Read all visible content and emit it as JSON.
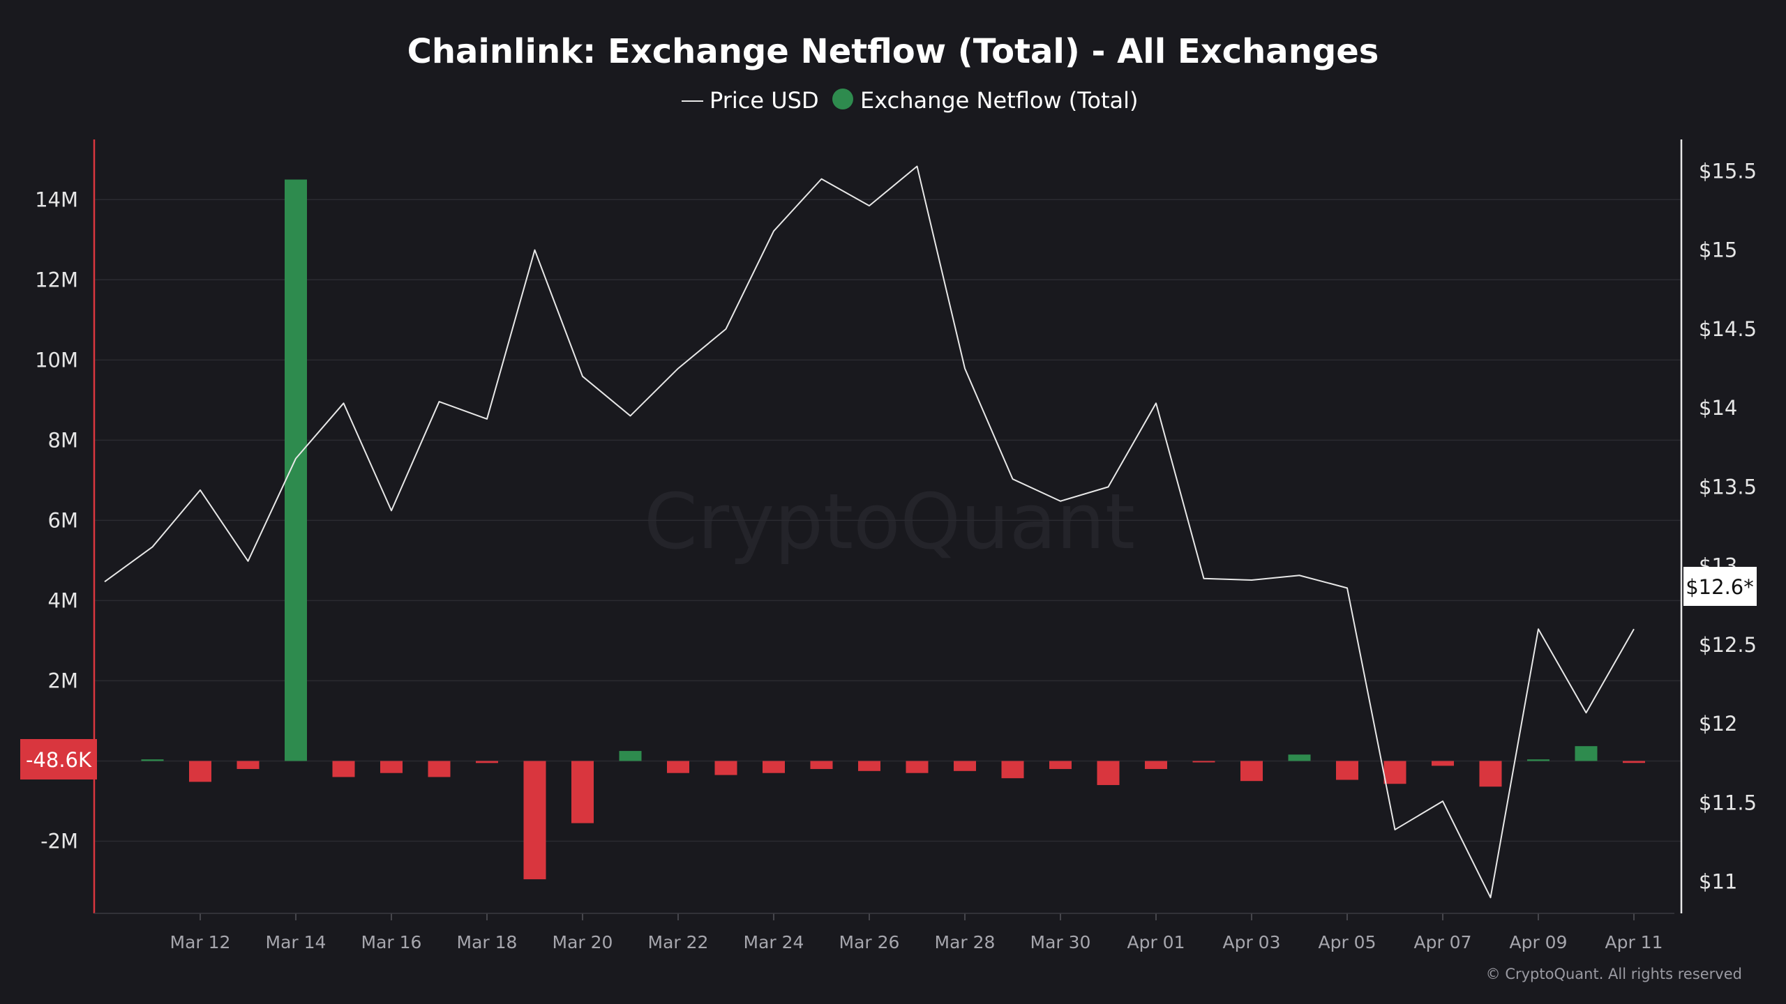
{
  "chart_data": {
    "type": "bar",
    "title": "Chainlink: Exchange Netflow (Total) - All Exchanges",
    "legend": {
      "placement": "top-center",
      "price_label": "Price USD",
      "netflow_label": "Exchange Netflow (Total)"
    },
    "colors": {
      "positive": "#2e8b4e",
      "negative": "#d9363e",
      "price_line": "#e8e8e8",
      "background": "#19191e",
      "grid": "#2b2b31",
      "left_axis": "#d9363e",
      "right_axis": "#e8e8e8"
    },
    "grid": true,
    "watermark": "CryptoQuant",
    "copyright": "© CryptoQuant. All rights reserved",
    "y_left": {
      "ylim": [
        -3800000,
        15500000
      ],
      "ticks": [
        -2000000,
        0,
        2000000,
        4000000,
        6000000,
        8000000,
        10000000,
        12000000,
        14000000
      ],
      "tick_labels": [
        "-2M",
        "",
        "2M",
        "4M",
        "6M",
        "8M",
        "10M",
        "12M",
        "14M"
      ]
    },
    "y_right": {
      "ylim": [
        10.8,
        15.7
      ],
      "ticks": [
        11,
        11.5,
        12,
        12.5,
        13,
        13.5,
        14,
        14.5,
        15,
        15.5
      ],
      "tick_labels": [
        "$11",
        "$11.5",
        "$12",
        "$12.5",
        "$13",
        "$13.5",
        "$14",
        "$14.5",
        "$15",
        "$15.5"
      ]
    },
    "x_ticks": {
      "indices": [
        2,
        4,
        6,
        8,
        10,
        12,
        14,
        16,
        18,
        20,
        22,
        24,
        26,
        28,
        30,
        32
      ],
      "labels": [
        "Mar 12",
        "Mar 14",
        "Mar 16",
        "Mar 18",
        "Mar 20",
        "Mar 22",
        "Mar 24",
        "Mar 26",
        "Mar 28",
        "Mar 30",
        "Apr 01",
        "Apr 03",
        "Apr 05",
        "Apr 07",
        "Apr 09",
        "Apr 11"
      ]
    },
    "x": [
      "Mar 10",
      "Mar 11",
      "Mar 12",
      "Mar 13",
      "Mar 14",
      "Mar 15",
      "Mar 16",
      "Mar 17",
      "Mar 18",
      "Mar 19",
      "Mar 20",
      "Mar 21",
      "Mar 22",
      "Mar 23",
      "Mar 24",
      "Mar 25",
      "Mar 26",
      "Mar 27",
      "Mar 28",
      "Mar 29",
      "Mar 30",
      "Mar 31",
      "Apr 01",
      "Apr 02",
      "Apr 03",
      "Apr 04",
      "Apr 05",
      "Apr 06",
      "Apr 07",
      "Apr 08",
      "Apr 09",
      "Apr 10",
      "Apr 11"
    ],
    "series": [
      {
        "name": "Exchange Netflow (Total)",
        "axis": "left",
        "values": [
          null,
          40000,
          -520000,
          -200000,
          14500000,
          -400000,
          -300000,
          -400000,
          -50000,
          -2950000,
          -1550000,
          250000,
          -300000,
          -350000,
          -300000,
          -200000,
          -250000,
          -300000,
          -250000,
          -430000,
          -200000,
          -600000,
          -200000,
          -30000,
          -500000,
          160000,
          -470000,
          -570000,
          -120000,
          -640000,
          40000,
          370000,
          -48600
        ]
      },
      {
        "name": "Price USD",
        "axis": "right",
        "values": [
          12.9,
          13.12,
          13.48,
          13.03,
          13.68,
          14.03,
          13.35,
          14.04,
          13.93,
          15.0,
          14.2,
          13.95,
          14.25,
          14.5,
          15.12,
          15.45,
          15.28,
          15.53,
          14.25,
          13.55,
          13.41,
          13.5,
          14.03,
          12.92,
          12.91,
          12.94,
          12.86,
          11.33,
          11.51,
          10.9,
          12.6,
          12.07,
          12.6
        ]
      }
    ],
    "current_values": {
      "netflow": "-48.6K",
      "price": "$12.6*"
    }
  }
}
